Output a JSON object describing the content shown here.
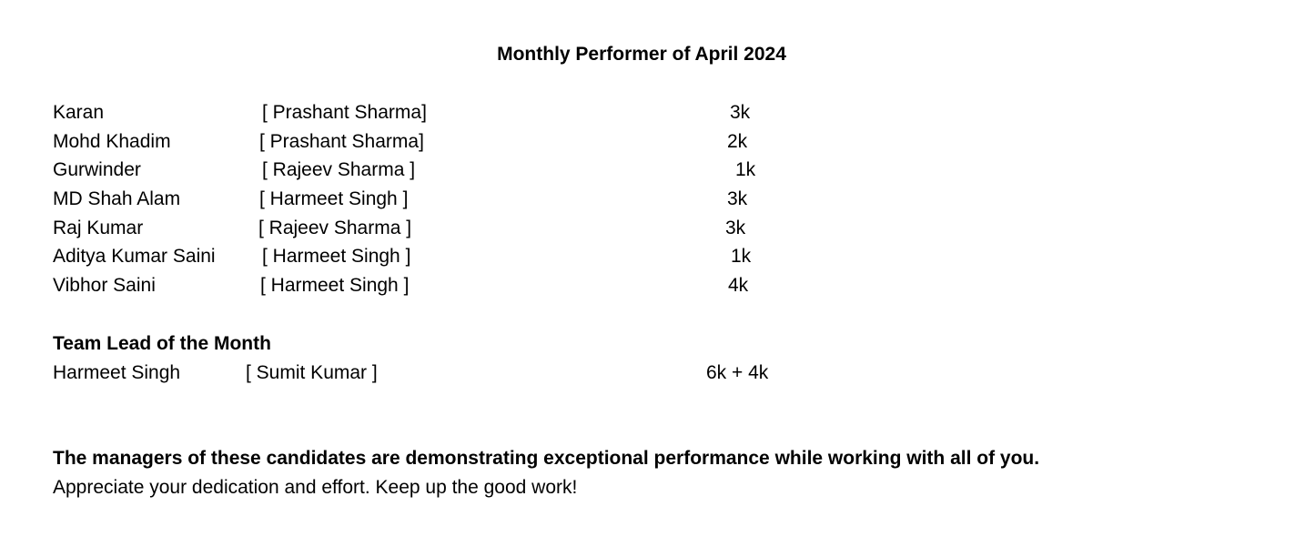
{
  "title": "Monthly Performer of April 2024",
  "performers": [
    {
      "name": "Karan",
      "manager": "[ Prashant Sharma]",
      "amount": "3k"
    },
    {
      "name": "Mohd Khadim",
      "manager": "[ Prashant Sharma]",
      "amount": "2k"
    },
    {
      "name": "Gurwinder",
      "manager": "[ Rajeev Sharma ]",
      "amount": "1k"
    },
    {
      "name": "MD Shah Alam",
      "manager": "[ Harmeet Singh ]",
      "amount": "3k"
    },
    {
      "name": "Raj Kumar",
      "manager": "[ Rajeev Sharma ]",
      "amount": "3k"
    },
    {
      "name": "Aditya Kumar Saini",
      "manager": "[ Harmeet Singh ]",
      "amount": "1k"
    },
    {
      "name": "Vibhor Saini",
      "manager": "[ Harmeet Singh ]",
      "amount": "4k"
    }
  ],
  "team_lead": {
    "heading": "Team Lead of the Month",
    "name": "Harmeet Singh",
    "manager": "[ Sumit Kumar ]",
    "amount": "6k + 4k"
  },
  "closing": {
    "line1": "The managers of these candidates are demonstrating exceptional performance while working with all of you.",
    "line2": "Appreciate your dedication and effort. Keep up the good work!"
  }
}
